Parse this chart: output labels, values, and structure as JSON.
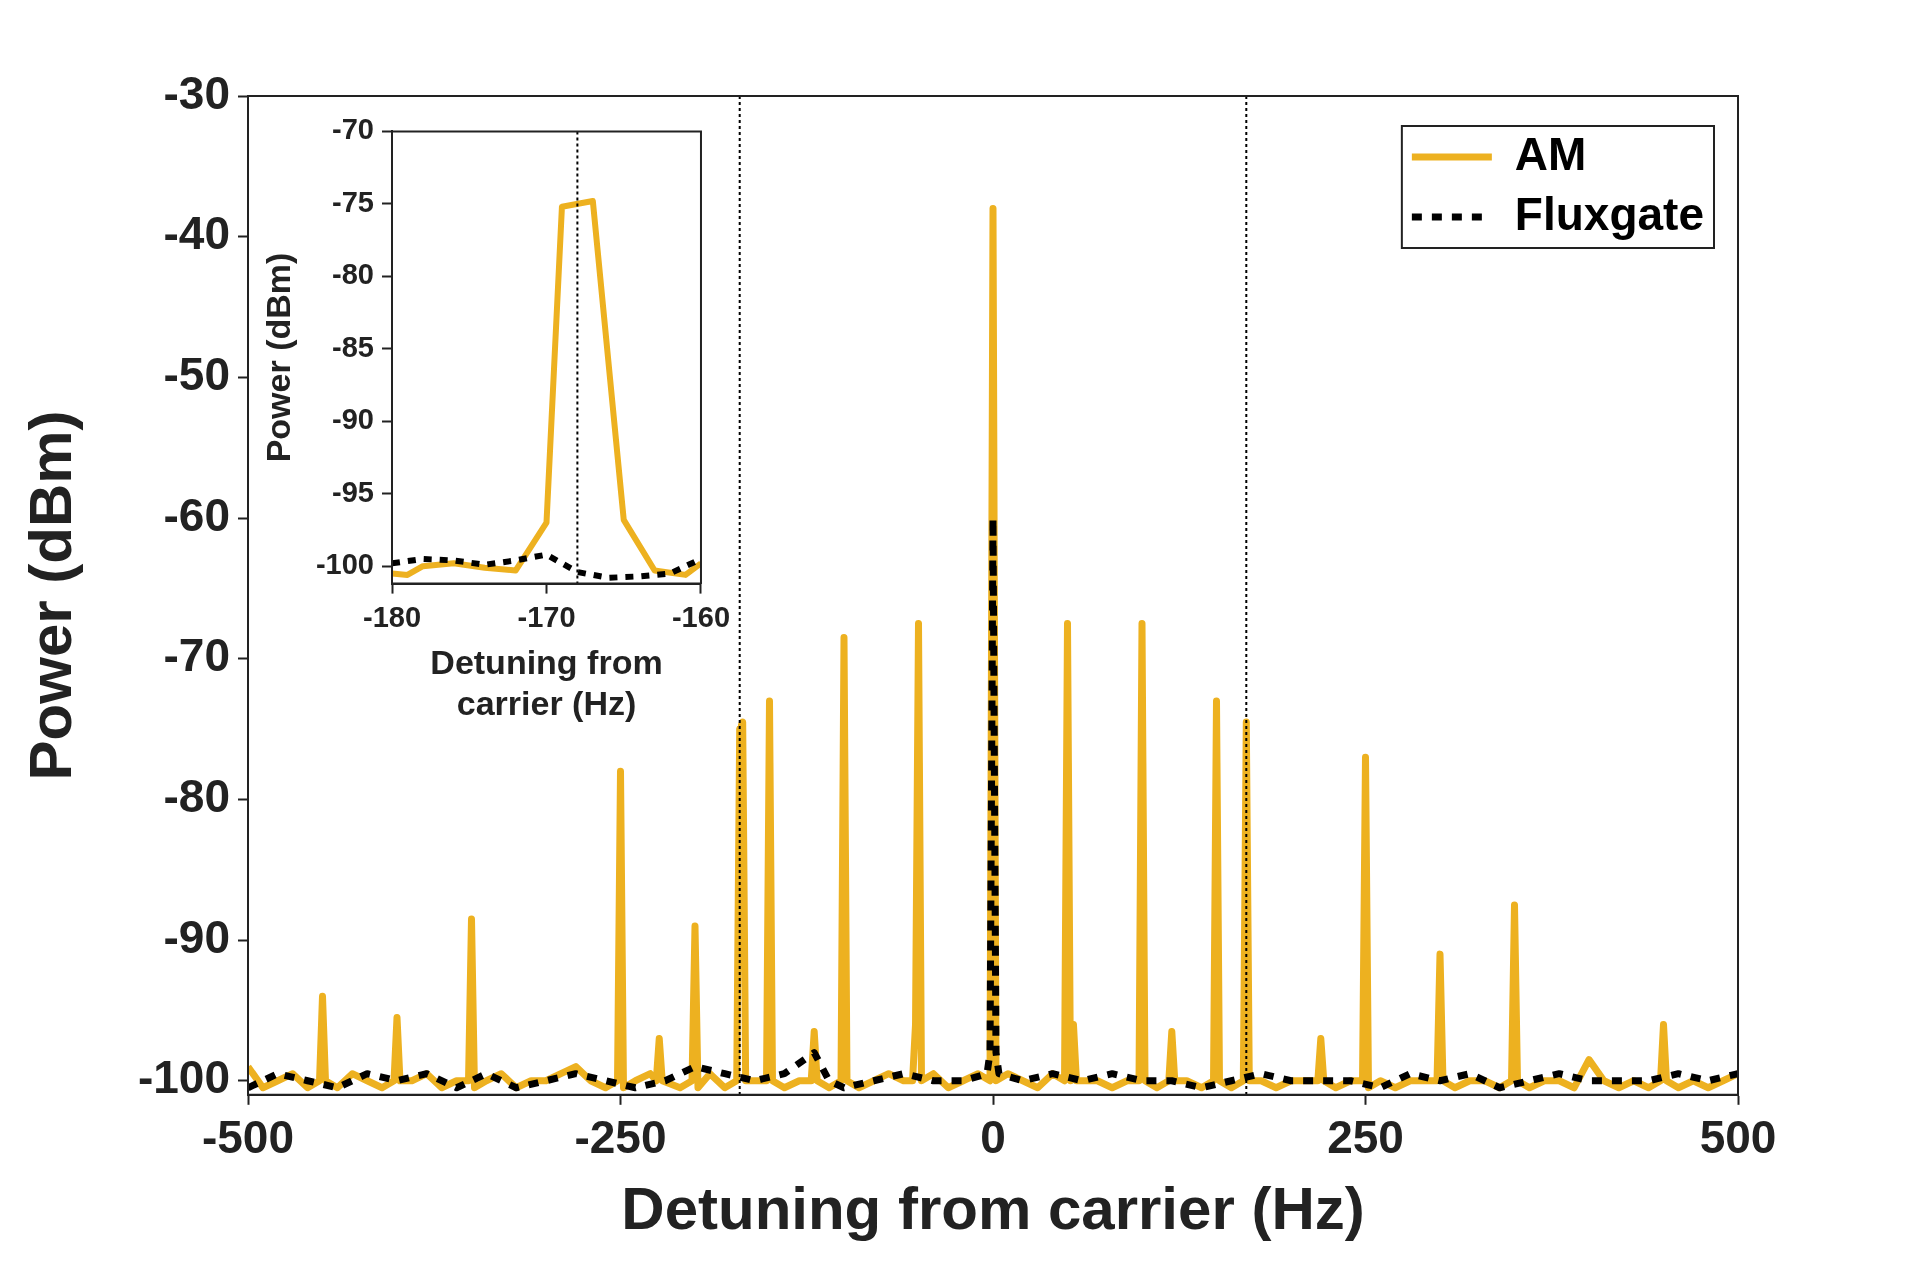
{
  "chart_data": [
    {
      "type": "line",
      "xlabel": "Detuning from carrier (Hz)",
      "ylabel": "Power (dBm)",
      "xlim": [
        -500,
        500
      ],
      "xticks": [
        -500,
        -250,
        0,
        250,
        500
      ],
      "ylim": [
        -101,
        -30
      ],
      "yticks": [
        -100,
        -90,
        -80,
        -70,
        -60,
        -50,
        -40,
        -30
      ],
      "grid": false,
      "legend": "top right",
      "marker": "none",
      "ref_lines": [
        {
          "axis": "x",
          "value": -170,
          "color": "#000000",
          "line_style": "dotted"
        },
        {
          "axis": "x",
          "value": 170,
          "color": "#000000",
          "line_style": "dotted"
        }
      ],
      "series": [
        {
          "name": "AM",
          "color": "#edb120",
          "line_style": "solid",
          "x": [
            -500,
            -490,
            -480,
            -470,
            -460,
            -452,
            -450,
            -448,
            -440,
            -430,
            -420,
            -410,
            -402,
            -400,
            -398,
            -390,
            -380,
            -370,
            -360,
            -352,
            -350,
            -348,
            -340,
            -330,
            -320,
            -310,
            -300,
            -290,
            -280,
            -270,
            -260,
            -252,
            -250,
            -248,
            -240,
            -230,
            -226,
            -224,
            -222,
            -210,
            -202,
            -200,
            -198,
            -190,
            -180,
            -172,
            -170,
            -168,
            -166,
            -160,
            -152,
            -150,
            -148,
            -140,
            -130,
            -122,
            -120,
            -118,
            -110,
            -102,
            -100,
            -98,
            -90,
            -80,
            -70,
            -60,
            -54,
            -52,
            -50,
            -48,
            -40,
            -30,
            -20,
            -10,
            -2,
            0,
            2,
            10,
            20,
            30,
            40,
            48,
            50,
            52,
            54,
            56,
            70,
            80,
            90,
            98,
            100,
            102,
            110,
            118,
            120,
            122,
            130,
            140,
            148,
            150,
            152,
            160,
            168,
            170,
            172,
            180,
            190,
            200,
            210,
            218,
            220,
            222,
            230,
            240,
            248,
            250,
            252,
            260,
            270,
            280,
            290,
            298,
            300,
            302,
            310,
            320,
            330,
            340,
            348,
            350,
            352,
            360,
            370,
            380,
            390,
            400,
            410,
            420,
            430,
            440,
            448,
            450,
            452,
            460,
            470,
            480,
            490,
            500
          ],
          "values": [
            -99,
            -100.5,
            -100,
            -99.5,
            -100.5,
            -100,
            -94,
            -100,
            -100.5,
            -99.5,
            -100,
            -100.5,
            -100,
            -95.5,
            -100,
            -100,
            -99.5,
            -100.5,
            -100,
            -100,
            -88.5,
            -100.5,
            -100,
            -99.5,
            -100.5,
            -100,
            -100,
            -99.5,
            -99,
            -100,
            -100.5,
            -100,
            -78,
            -100.5,
            -100,
            -99.5,
            -100,
            -97,
            -100,
            -100.5,
            -100,
            -89,
            -100.5,
            -99.5,
            -100.5,
            -100,
            -75,
            -74.5,
            -100,
            -100,
            -100,
            -73,
            -100,
            -100.5,
            -100,
            -100,
            -96.5,
            -100,
            -100.5,
            -100,
            -68.5,
            -100,
            -100.5,
            -100,
            -99.5,
            -100,
            -100,
            -96,
            -67.5,
            -100,
            -99.5,
            -100.5,
            -100,
            -99.5,
            -100,
            -38,
            -100,
            -99.5,
            -100,
            -100.5,
            -99.5,
            -100,
            -67.5,
            -100,
            -96,
            -100,
            -100,
            -100.5,
            -100,
            -100,
            -67.5,
            -100,
            -100.5,
            -100,
            -96.5,
            -100,
            -100,
            -100.5,
            -100,
            -73,
            -100,
            -100.5,
            -100,
            -74.5,
            -100,
            -100,
            -100.5,
            -100,
            -100,
            -100,
            -97,
            -100,
            -100.5,
            -100,
            -100,
            -77,
            -100.5,
            -100,
            -100.5,
            -100,
            -100,
            -100,
            -91,
            -100,
            -100.5,
            -100,
            -100,
            -100.5,
            -100,
            -87.5,
            -100,
            -100.5,
            -100,
            -100,
            -100.5,
            -98.5,
            -100,
            -100.5,
            -100,
            -100.5,
            -100,
            -96,
            -100,
            -100.5,
            -100,
            -100.5,
            -100,
            -99.5
          ]
        },
        {
          "name": "Fluxgate",
          "color": "#000000",
          "line_style": "dotted",
          "x": [
            -500,
            -480,
            -460,
            -440,
            -420,
            -400,
            -380,
            -360,
            -340,
            -320,
            -300,
            -280,
            -260,
            -240,
            -220,
            -200,
            -180,
            -160,
            -140,
            -120,
            -110,
            -100,
            -80,
            -60,
            -40,
            -20,
            -4,
            -2,
            0,
            2,
            4,
            20,
            40,
            60,
            80,
            100,
            120,
            140,
            160,
            180,
            200,
            220,
            240,
            260,
            280,
            300,
            320,
            340,
            360,
            380,
            400,
            420,
            440,
            460,
            480,
            500
          ],
          "values": [
            -100.5,
            -99.5,
            -100,
            -100.5,
            -99.5,
            -100,
            -99.5,
            -100.5,
            -99.5,
            -100.5,
            -100,
            -99.5,
            -100,
            -100.5,
            -100,
            -99,
            -99.5,
            -100,
            -99.5,
            -98,
            -100,
            -100.5,
            -100,
            -99.5,
            -100,
            -100,
            -99.5,
            -98,
            -60,
            -98,
            -99.5,
            -100,
            -99.5,
            -100,
            -99.5,
            -100,
            -100,
            -100.5,
            -100,
            -99.5,
            -100,
            -100,
            -100,
            -100.5,
            -99.5,
            -100,
            -99.5,
            -100.5,
            -100,
            -99.5,
            -100,
            -100,
            -100,
            -99.5,
            -100,
            -99.5
          ]
        }
      ]
    },
    {
      "type": "line",
      "xlabel": "Detuning from carrier (Hz)",
      "ylabel": "Power (dBm)",
      "xlim": [
        -180,
        -160
      ],
      "xticks": [
        -180,
        -170,
        -160
      ],
      "ylim": [
        -101.2,
        -70
      ],
      "yticks": [
        -100,
        -95,
        -90,
        -85,
        -80,
        -75,
        -70
      ],
      "grid": false,
      "marker": "none",
      "ref_lines": [
        {
          "axis": "x",
          "value": -168,
          "color": "#000000",
          "line_style": "dotted"
        }
      ],
      "series": [
        {
          "color": "#edb120",
          "line_style": "solid",
          "x": [
            -180,
            -179,
            -178,
            -176,
            -174,
            -172,
            -170,
            -169,
            -167,
            -165,
            -163,
            -161,
            -160
          ],
          "values": [
            -100.5,
            -100.6,
            -100,
            -99.8,
            -100.1,
            -100.3,
            -97,
            -75.2,
            -74.8,
            -96.8,
            -100.3,
            -100.6,
            -99.8
          ]
        },
        {
          "color": "#000000",
          "line_style": "dotted",
          "x": [
            -180,
            -178,
            -176,
            -174,
            -172,
            -170,
            -168,
            -166,
            -164,
            -162,
            -160
          ],
          "values": [
            -99.8,
            -99.5,
            -99.6,
            -99.9,
            -99.6,
            -99.2,
            -100.4,
            -100.8,
            -100.7,
            -100.5,
            -99.5
          ]
        }
      ]
    }
  ]
}
